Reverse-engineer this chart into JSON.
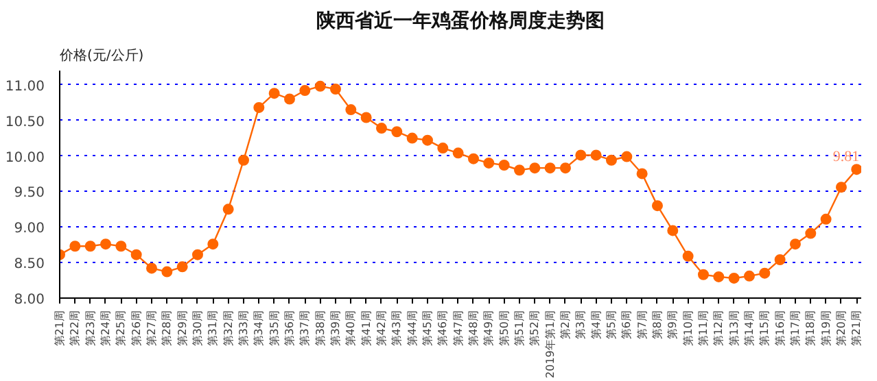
{
  "chart_data": {
    "type": "line",
    "title": "陕西省近一年鸡蛋价格周度走势图",
    "ylabel": "价格(元/公斤)",
    "categories": [
      "第21周",
      "第22周",
      "第23周",
      "第24周",
      "第25周",
      "第26周",
      "第27周",
      "第28周",
      "第29周",
      "第30周",
      "第31周",
      "第32周",
      "第33周",
      "第34周",
      "第35周",
      "第36周",
      "第37周",
      "第38周",
      "第39周",
      "第40周",
      "第41周",
      "第42周",
      "第43周",
      "第44周",
      "第45周",
      "第46周",
      "第47周",
      "第48周",
      "第49周",
      "第50周",
      "第51周",
      "第52周",
      "2019年第1周",
      "第2周",
      "第3周",
      "第4周",
      "第5周",
      "第6周",
      "第7周",
      "第8周",
      "第9周",
      "第10周",
      "第11周",
      "第12周",
      "第13周",
      "第14周",
      "第15周",
      "第16周",
      "第17周",
      "第18周",
      "第19周",
      "第20周",
      "第21周"
    ],
    "series": [
      {
        "color": "#ff6600",
        "values": [
          8.61,
          8.73,
          8.73,
          8.76,
          8.73,
          8.61,
          8.42,
          8.37,
          8.44,
          8.61,
          8.76,
          9.25,
          9.94,
          10.68,
          10.88,
          10.8,
          10.92,
          10.98,
          10.94,
          10.65,
          10.54,
          10.39,
          10.34,
          10.25,
          10.22,
          10.11,
          10.04,
          9.96,
          9.9,
          9.87,
          9.8,
          9.83,
          9.83,
          9.83,
          10.01,
          10.01,
          9.94,
          9.99,
          9.75,
          9.3,
          8.95,
          8.59,
          8.33,
          8.3,
          8.28,
          8.31,
          8.35,
          8.54,
          8.76,
          8.91,
          9.11,
          9.56,
          9.81
        ],
        "value_labels": [
          null,
          null,
          null,
          null,
          null,
          null,
          null,
          null,
          null,
          null,
          null,
          null,
          null,
          null,
          null,
          null,
          null,
          null,
          null,
          null,
          null,
          null,
          null,
          null,
          null,
          null,
          null,
          null,
          null,
          null,
          null,
          null,
          null,
          null,
          null,
          null,
          null,
          null,
          null,
          null,
          null,
          null,
          null,
          null,
          null,
          null,
          null,
          null,
          null,
          null,
          null,
          null,
          "9.81"
        ]
      }
    ],
    "ylim": [
      8,
      11.2
    ],
    "yticks": [
      {
        "value": 8,
        "label": "8.00"
      },
      {
        "value": 8.5,
        "label": "8.50"
      },
      {
        "value": 9,
        "label": "9.00"
      },
      {
        "value": 9.5,
        "label": "9.50"
      },
      {
        "value": 10,
        "label": "10.00"
      },
      {
        "value": 10.5,
        "label": "10.50"
      },
      {
        "value": 11,
        "label": "11.00"
      }
    ],
    "grid": "y",
    "marker": "circle",
    "line_style": "solid"
  }
}
